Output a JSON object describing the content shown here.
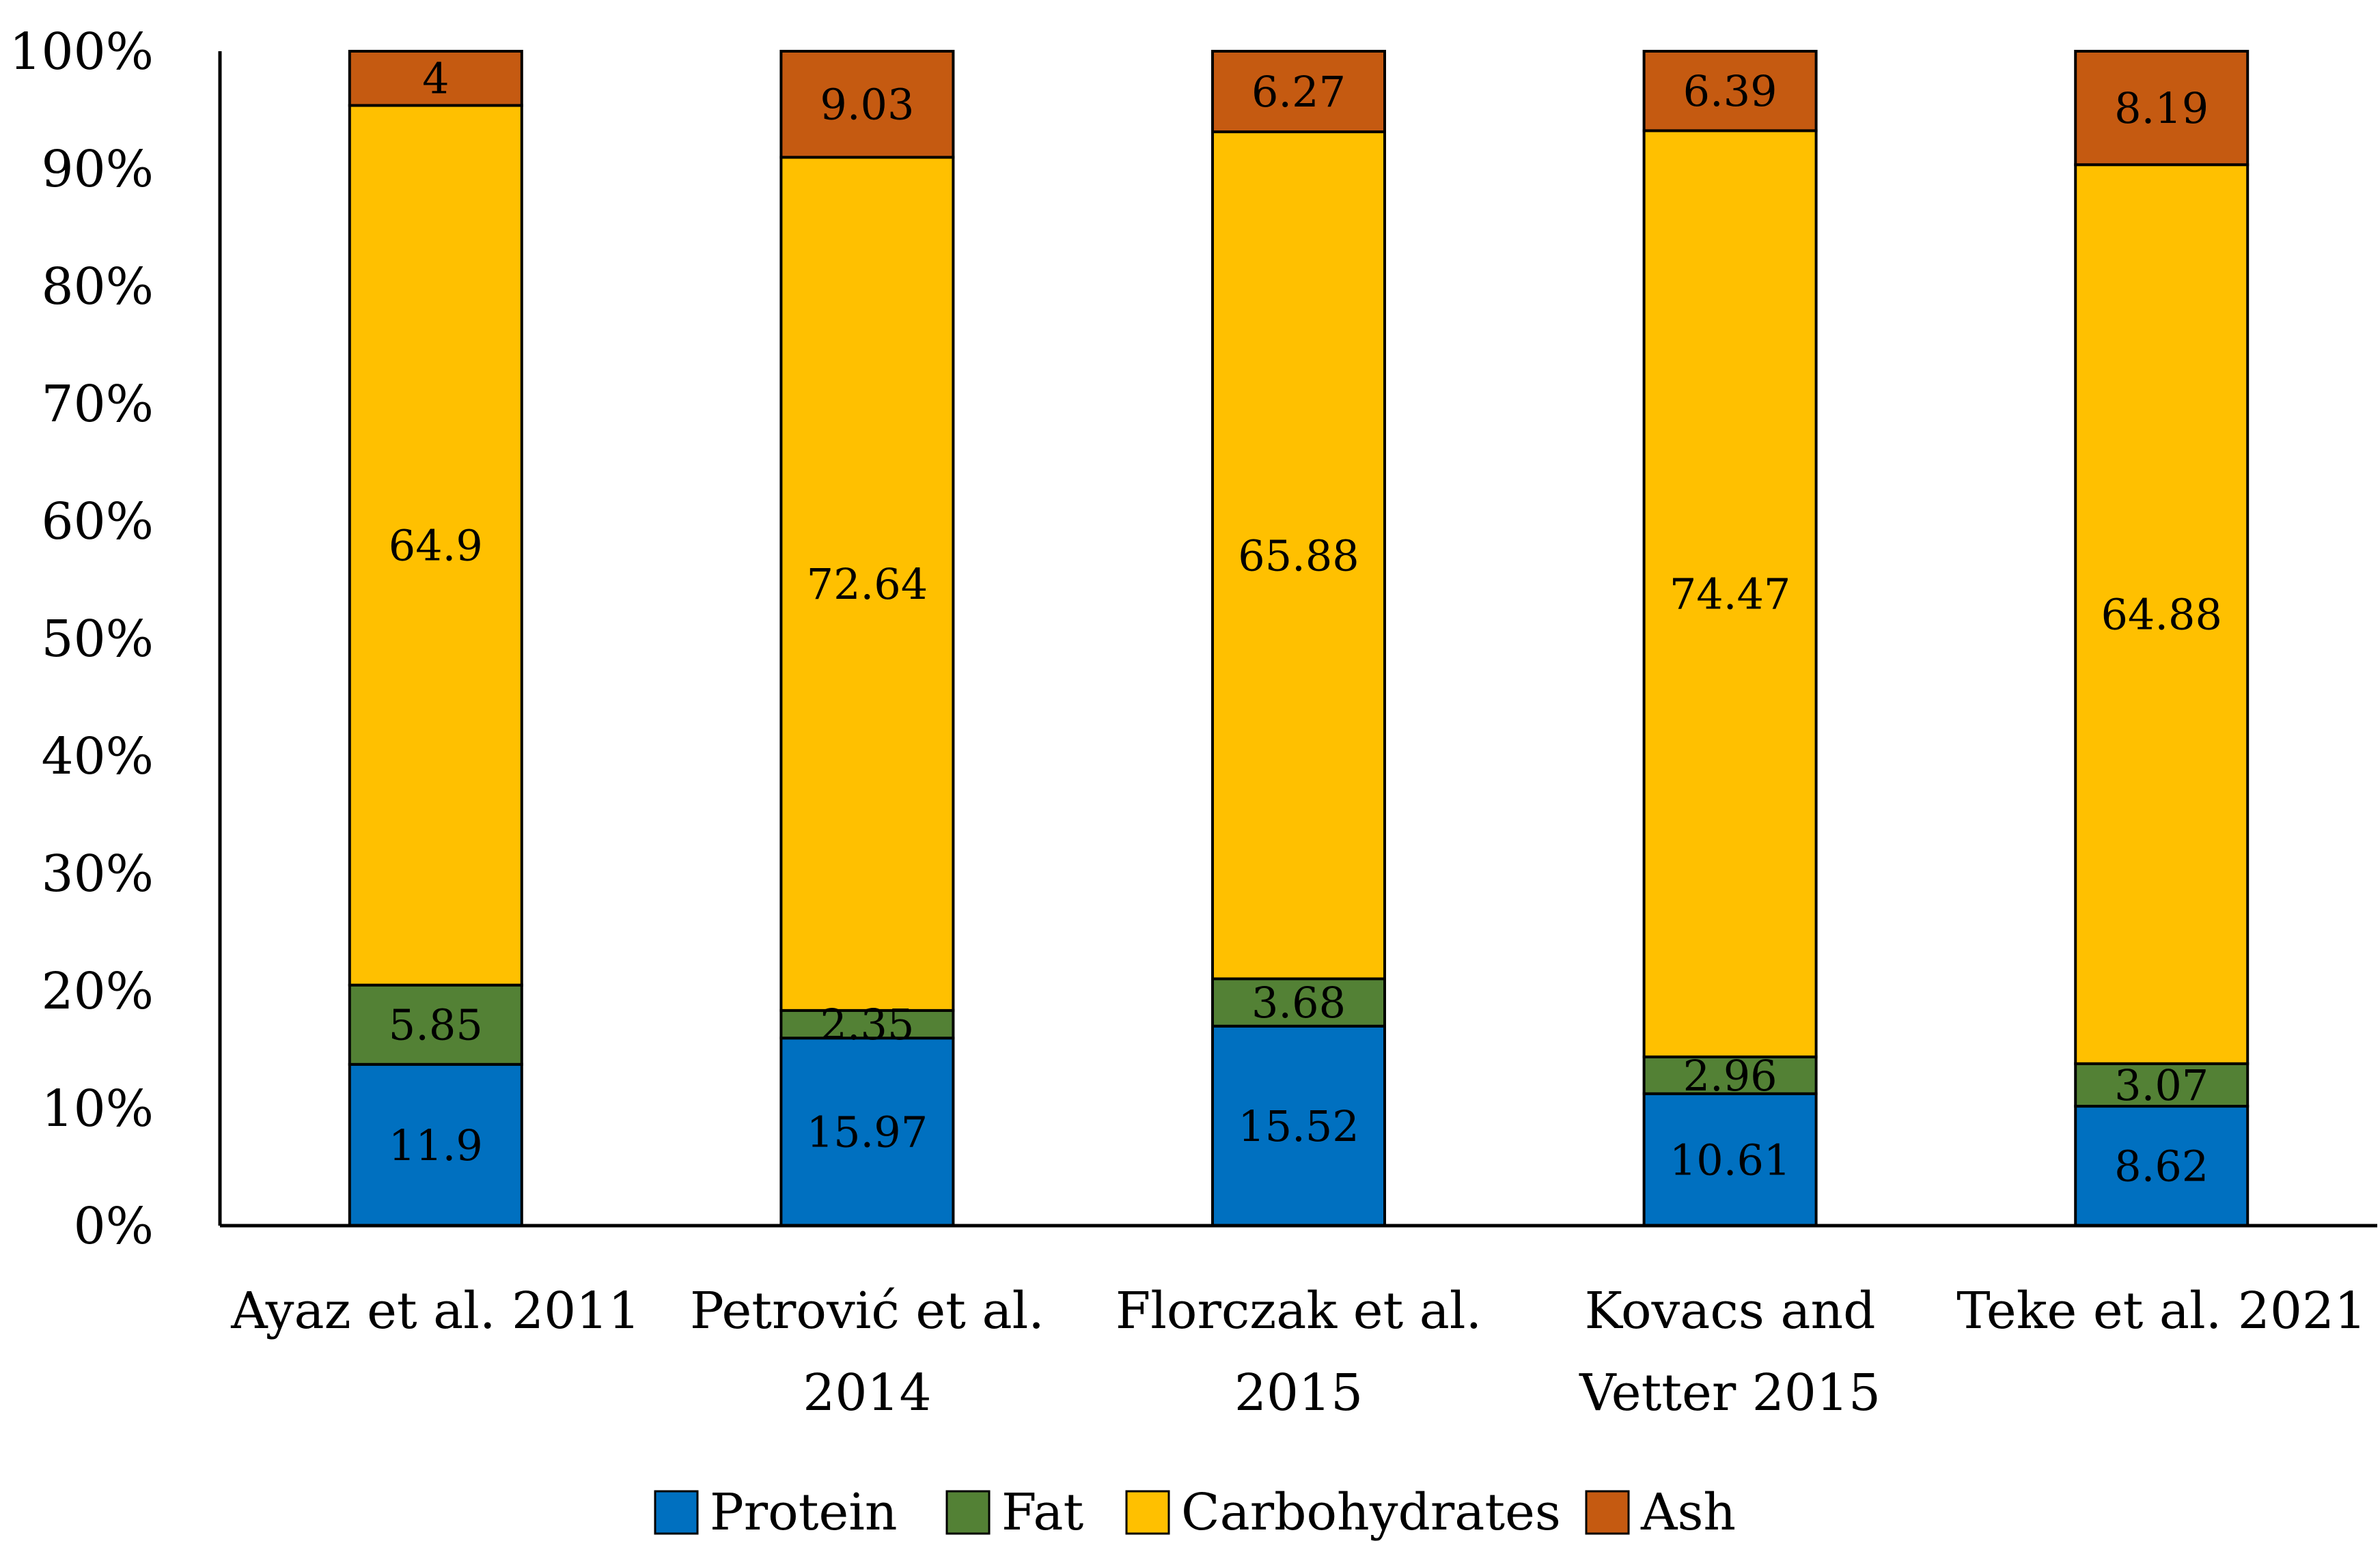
{
  "chart_data": {
    "type": "bar",
    "stacked": true,
    "normalized": true,
    "title": "",
    "xlabel": "",
    "ylabel": "",
    "ylim": [
      0,
      100
    ],
    "yticks": [
      "0%",
      "10%",
      "20%",
      "30%",
      "40%",
      "50%",
      "60%",
      "70%",
      "80%",
      "90%",
      "100%"
    ],
    "categories": [
      [
        "Ayaz et al. 2011"
      ],
      [
        "Petrović et al.",
        "2014"
      ],
      [
        "Florczak et al.",
        "2015"
      ],
      [
        "Kovacs and",
        "Vetter 2015"
      ],
      [
        "Teke et al. 2021"
      ]
    ],
    "series": [
      {
        "name": "Protein",
        "color": "#0070C0",
        "values": [
          11.9,
          15.97,
          15.52,
          10.61,
          8.62
        ],
        "labels": [
          "11.9",
          "15.97",
          "15.52",
          "10.61",
          "8.62"
        ]
      },
      {
        "name": "Fat",
        "color": "#538135",
        "values": [
          5.85,
          2.35,
          3.68,
          2.96,
          3.07
        ],
        "labels": [
          "5.85",
          "2.35",
          "3.68",
          "2.96",
          "3.07"
        ]
      },
      {
        "name": "Carbohydrates",
        "color": "#FFC000",
        "values": [
          64.9,
          72.64,
          65.88,
          74.47,
          64.88
        ],
        "labels": [
          "64.9",
          "72.64",
          "65.88",
          "74.47",
          "64.88"
        ]
      },
      {
        "name": "Ash",
        "color": "#C55A11",
        "values": [
          4,
          9.03,
          6.27,
          6.39,
          8.19
        ],
        "labels": [
          "4",
          "9.03",
          "6.27",
          "6.39",
          "8.19"
        ]
      }
    ],
    "legend_position": "bottom",
    "grid": false
  }
}
